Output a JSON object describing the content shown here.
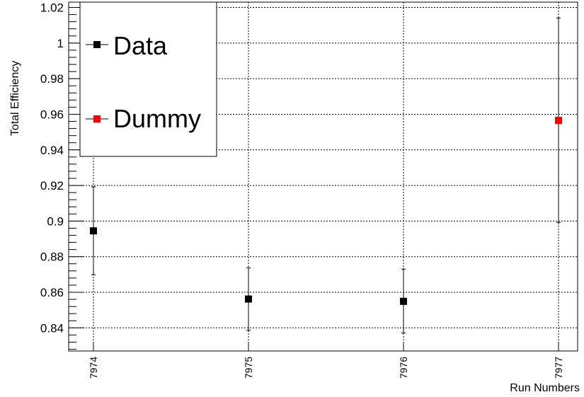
{
  "chart_data": {
    "type": "scatter",
    "xlabel": "Run Numbers",
    "ylabel": "Total Efficiency",
    "categories": [
      "7974",
      "7975",
      "7976",
      "7977"
    ],
    "ylim": [
      0.827,
      1.023
    ],
    "yticks": [
      0.84,
      0.86,
      0.88,
      0.9,
      0.92,
      0.94,
      0.96,
      0.98,
      1,
      1.02
    ],
    "ytick_labels": [
      "0.84",
      "0.86",
      "0.88",
      "0.9",
      "0.92",
      "0.94",
      "0.96",
      "0.98",
      "1",
      "1.02"
    ],
    "grid": true,
    "legend_position": "top-left",
    "series": [
      {
        "name": "Data",
        "color": "#000000",
        "marker": "square",
        "points": [
          {
            "x": "7974",
            "y": 0.8945,
            "err_low": 0.8698,
            "err_high": 0.9192
          },
          {
            "x": "7975",
            "y": 0.8562,
            "err_low": 0.8386,
            "err_high": 0.8738
          },
          {
            "x": "7976",
            "y": 0.8549,
            "err_low": 0.8372,
            "err_high": 0.873
          }
        ]
      },
      {
        "name": "Dummy",
        "color": "#ff0000",
        "marker": "square",
        "points": [
          {
            "x": "7977",
            "y": 0.9566,
            "err_low": 0.8992,
            "err_high": 1.0141
          }
        ]
      }
    ]
  }
}
